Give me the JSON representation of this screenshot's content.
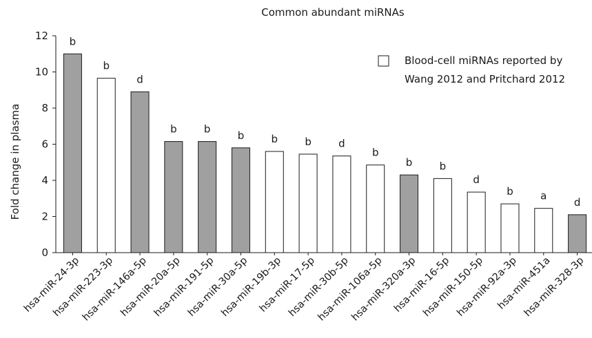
{
  "chart_data": {
    "type": "bar",
    "title": "Common abundant miRNAs",
    "xlabel": "",
    "ylabel": "Fold change in plasma",
    "ylim": [
      0,
      12
    ],
    "yticks": [
      "0",
      "2",
      "4",
      "6",
      "8",
      "10",
      "12"
    ],
    "grid": false,
    "legend_position": "top-right",
    "legend": {
      "label_line1": "Blood-cell miRNAs reported by",
      "label_line2": "Wang 2012 and Pritchard 2012",
      "swatch_color": "#ffffff"
    },
    "colors": {
      "blood_cell": "#ffffff",
      "other": "#a0a0a0",
      "outline": "#1a1a1a"
    },
    "categories": [
      "hsa-miR-24-3p",
      "hsa-miR-223-3p",
      "hsa-miR-146a-5p",
      "hsa-miR-20a-5p",
      "hsa-miR-191-5p",
      "hsa-miR-30a-5p",
      "hsa-miR-19b-3p",
      "hsa-miR-17-5p",
      "hsa-miR-30b-5p",
      "hsa-miR-106a-5p",
      "hsa-miR-320a-3p",
      "hsa-miR-16-5p",
      "hsa-miR-150-5p",
      "hsa-miR-92a-3p",
      "hsa-miR-451a",
      "hsa-miR-328-3p"
    ],
    "values": [
      11.0,
      9.65,
      8.9,
      6.15,
      6.15,
      5.8,
      5.6,
      5.45,
      5.35,
      4.85,
      4.3,
      4.1,
      3.35,
      2.7,
      2.45,
      2.1
    ],
    "blood_cell": [
      false,
      true,
      false,
      false,
      false,
      false,
      true,
      true,
      true,
      true,
      false,
      true,
      true,
      true,
      true,
      false
    ],
    "significance": [
      "b",
      "b",
      "d",
      "b",
      "b",
      "b",
      "b",
      "b",
      "d",
      "b",
      "b",
      "b",
      "d",
      "b",
      "a",
      "d"
    ]
  }
}
